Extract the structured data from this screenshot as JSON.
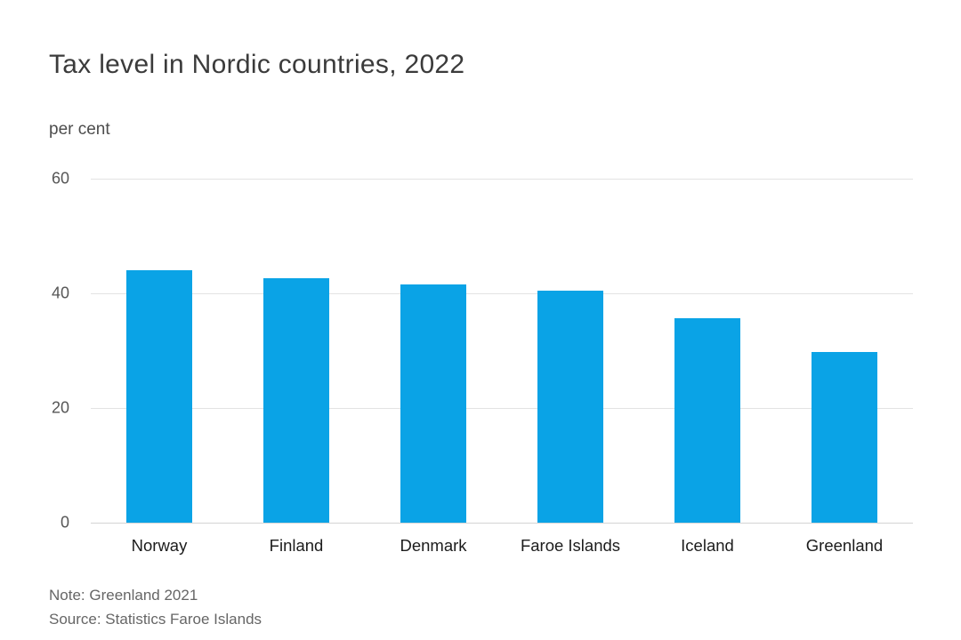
{
  "chart_data": {
    "type": "bar",
    "title": "Tax level in Nordic countries, 2022",
    "ylabel": "per cent",
    "xlabel": "",
    "categories": [
      "Norway",
      "Finland",
      "Denmark",
      "Faroe Islands",
      "Iceland",
      "Greenland"
    ],
    "values": [
      44.0,
      42.6,
      41.5,
      40.4,
      35.7,
      29.8
    ],
    "ylim": [
      0,
      60
    ],
    "yticks": [
      0,
      20,
      40,
      60
    ],
    "grid": true,
    "legend": "none",
    "bar_color": "#0aa3e6",
    "gridline_color": "#e3e3e3",
    "note": "Note: Greenland 2021",
    "source": "Source: Statistics Faroe Islands"
  }
}
